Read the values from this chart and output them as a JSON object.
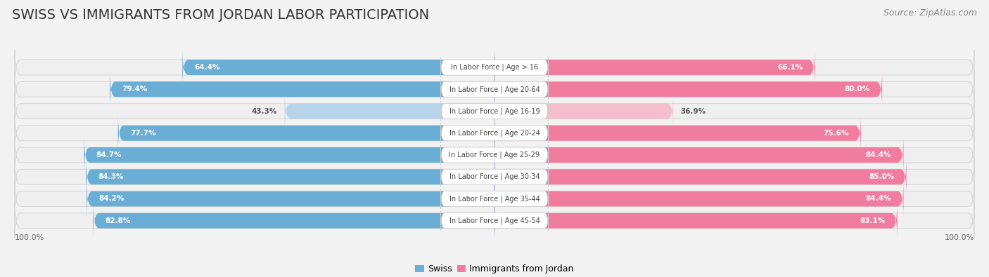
{
  "title": "Swiss vs Immigrants from Jordan Labor Participation",
  "source": "Source: ZipAtlas.com",
  "categories": [
    "In Labor Force | Age > 16",
    "In Labor Force | Age 20-64",
    "In Labor Force | Age 16-19",
    "In Labor Force | Age 20-24",
    "In Labor Force | Age 25-29",
    "In Labor Force | Age 30-34",
    "In Labor Force | Age 35-44",
    "In Labor Force | Age 45-54"
  ],
  "swiss_values": [
    64.4,
    79.4,
    43.3,
    77.7,
    84.7,
    84.3,
    84.2,
    82.8
  ],
  "jordan_values": [
    66.1,
    80.0,
    36.9,
    75.6,
    84.4,
    85.0,
    84.4,
    83.1
  ],
  "swiss_color": "#6aaed6",
  "swiss_color_light": "#b8d4ea",
  "jordan_color": "#f07ca0",
  "jordan_color_light": "#f5bece",
  "background_color": "#f2f2f2",
  "bar_bg_color": "#e4e4e4",
  "row_bg_color": "#efefef",
  "label_bg_color": "#ffffff",
  "title_fontsize": 14,
  "source_fontsize": 9,
  "bar_height": 0.7,
  "legend_swiss": "Swiss",
  "legend_jordan": "Immigrants from Jordan"
}
